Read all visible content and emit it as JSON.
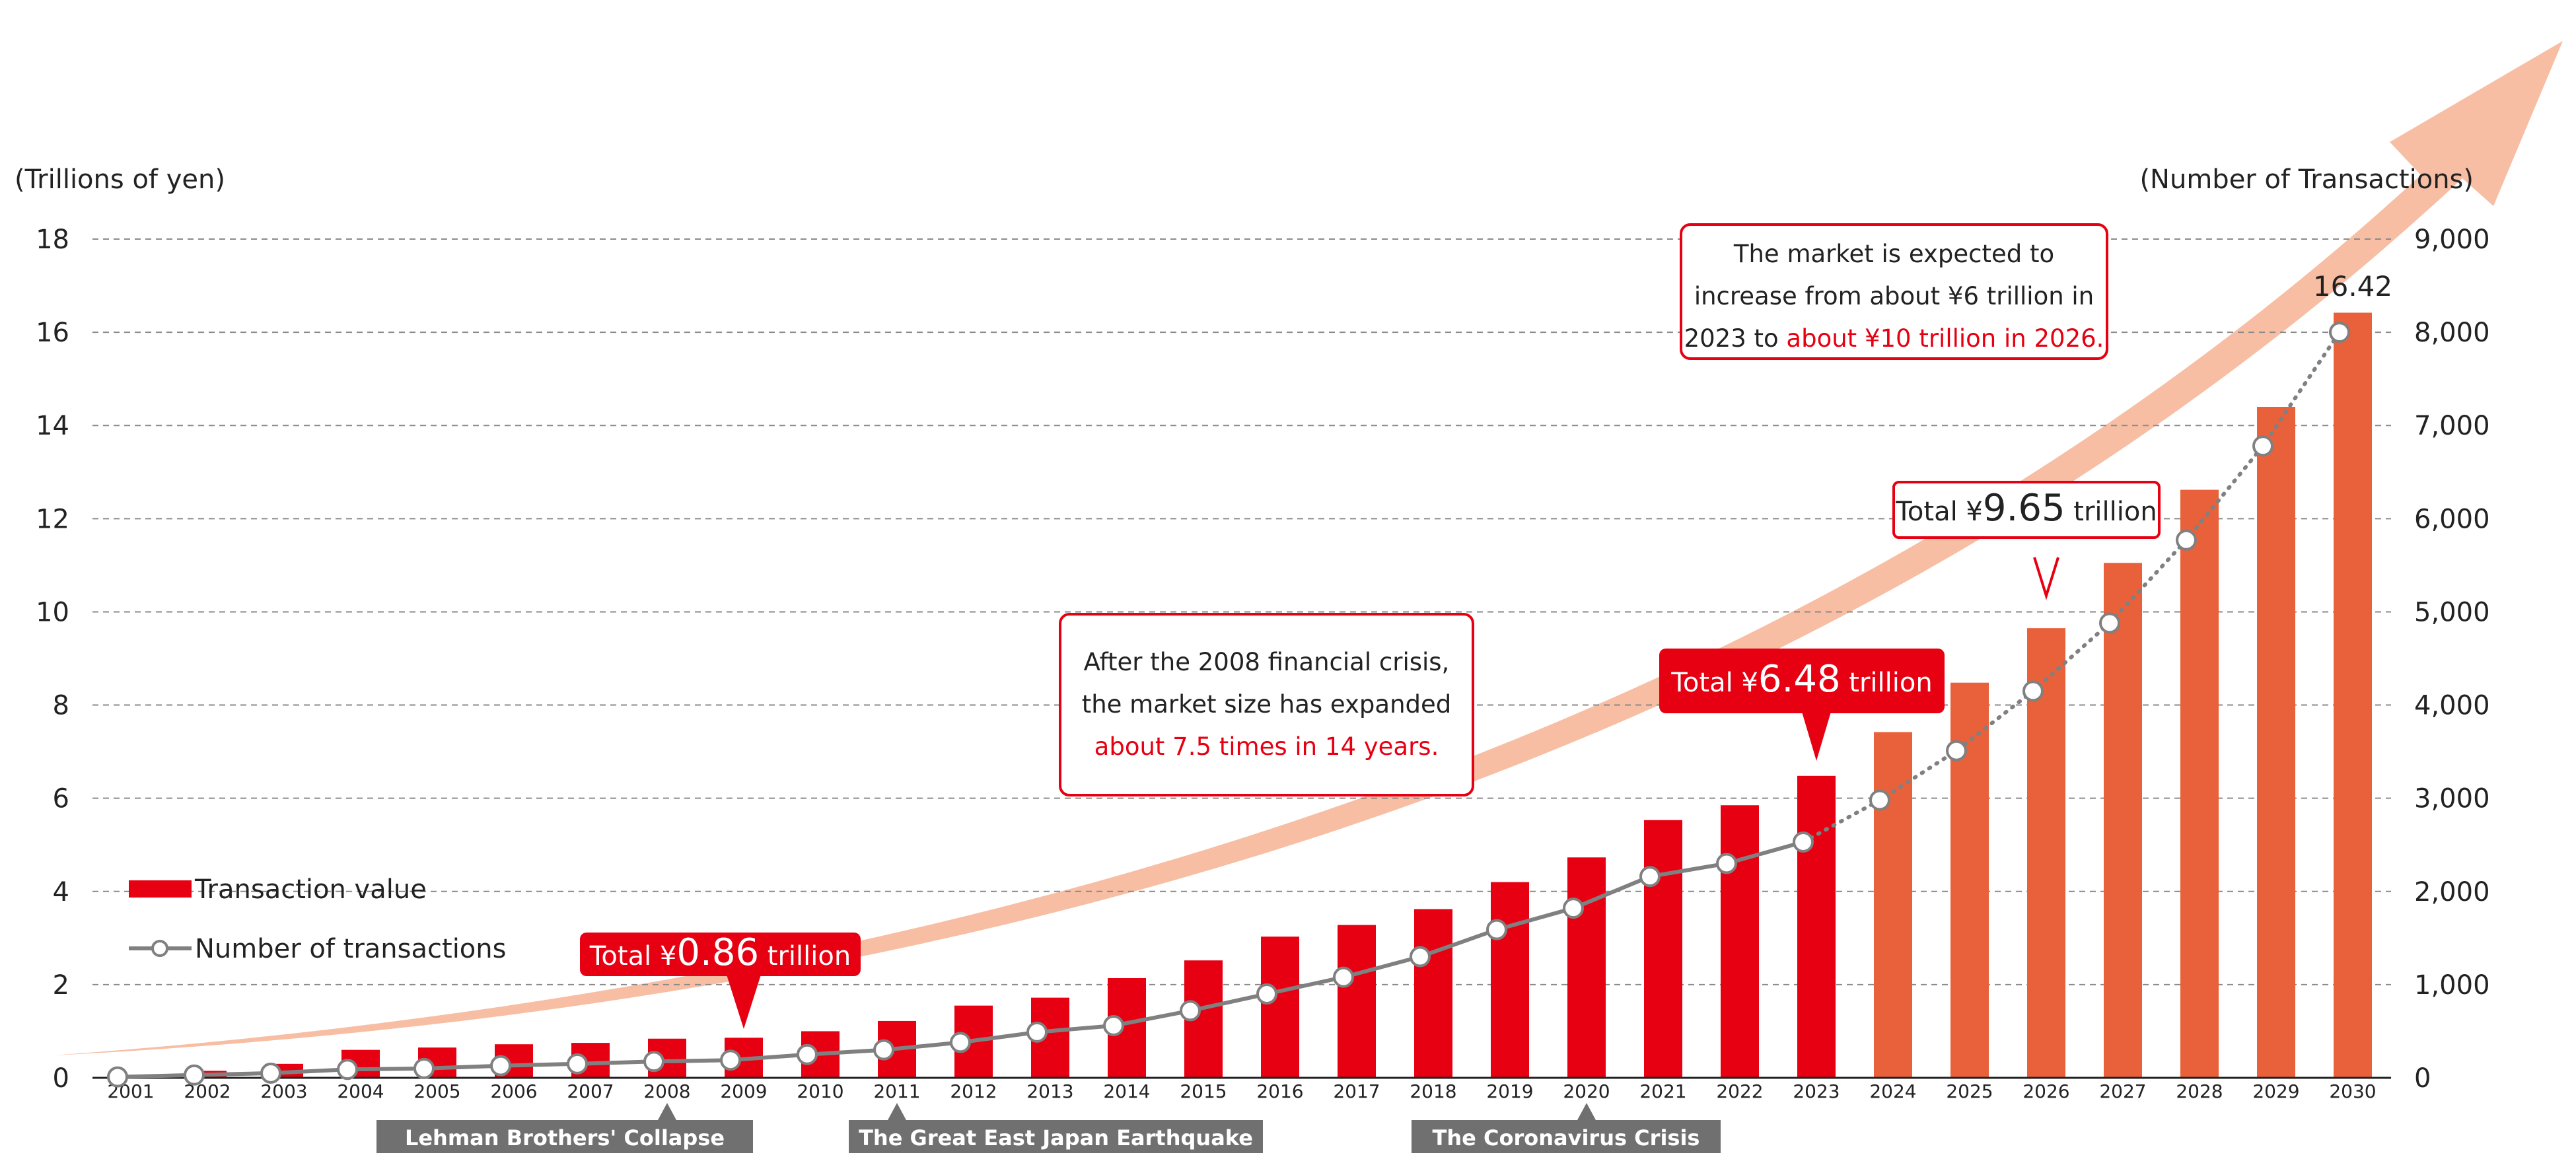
{
  "chart_data": {
    "type": "bar",
    "categories": [
      "2001",
      "2002",
      "2003",
      "2004",
      "2005",
      "2006",
      "2007",
      "2008",
      "2009",
      "2010",
      "2011",
      "2012",
      "2013",
      "2014",
      "2015",
      "2016",
      "2017",
      "2018",
      "2019",
      "2020",
      "2021",
      "2022",
      "2023",
      "2024",
      "2025",
      "2026",
      "2027",
      "2028",
      "2029",
      "2030"
    ],
    "left_axis": {
      "label": "(Trillions of yen)",
      "ylim": [
        0,
        18
      ],
      "ticks": [
        "0",
        "2",
        "4",
        "6",
        "8",
        "10",
        "12",
        "14",
        "16",
        "18"
      ]
    },
    "right_axis": {
      "label": "(Number of Transactions)",
      "ylim": [
        0,
        9000
      ],
      "ticks": [
        "0",
        "1,000",
        "2,000",
        "3,000",
        "4,000",
        "5,000",
        "6,000",
        "7,000",
        "8,000",
        "9,000"
      ]
    },
    "grid": true,
    "series": [
      {
        "name": "Transaction value",
        "type": "bar",
        "axis": "left",
        "values": [
          0.05,
          0.15,
          0.3,
          0.6,
          0.65,
          0.72,
          0.75,
          0.84,
          0.86,
          1.0,
          1.22,
          1.55,
          1.72,
          2.14,
          2.52,
          3.03,
          3.28,
          3.62,
          4.2,
          4.73,
          5.53,
          5.85,
          6.48,
          7.42,
          8.48,
          9.65,
          11.05,
          12.62,
          14.4,
          16.42
        ],
        "actual_color": "#e60012",
        "forecast_color": "#e8613a",
        "forecast_from": "2024"
      },
      {
        "name": "Number of transactions",
        "type": "line",
        "axis": "right",
        "values": [
          10,
          30,
          50,
          90,
          100,
          130,
          150,
          175,
          190,
          250,
          300,
          380,
          490,
          560,
          720,
          900,
          1080,
          1300,
          1590,
          1820,
          2160,
          2300,
          2530,
          2980,
          3510,
          4150,
          4880,
          5770,
          6780,
          8000
        ],
        "color": "#808080",
        "forecast_from": "2023"
      }
    ],
    "value_label": "16.42",
    "legend": {
      "placement": "left",
      "items": [
        "Transaction value",
        "Number of transactions"
      ]
    },
    "callouts": [
      {
        "year": "2009",
        "prefix": "Total ¥",
        "value": "0.86",
        "suffix": " trillion",
        "style": "red"
      },
      {
        "year": "2023",
        "prefix": "Total ¥",
        "value": "6.48",
        "suffix": " trillion",
        "style": "red"
      },
      {
        "year": "2026",
        "prefix": "Total ¥",
        "value": "9.65",
        "suffix": " trillion",
        "style": "outline"
      }
    ],
    "annotation_boxes": [
      {
        "lines": [
          [
            "After the 2008 financial crisis,",
            ""
          ],
          [
            "the market size has expanded",
            ""
          ],
          [
            "",
            "about 7.5 times in 14 years."
          ]
        ]
      },
      {
        "lines": [
          [
            "The market is expected to",
            ""
          ],
          [
            "increase from about ¥6 trillion in",
            ""
          ],
          [
            "2023 to ",
            "about ¥10 trillion in 2026."
          ]
        ]
      }
    ],
    "events": [
      {
        "year": "2008",
        "label": "Lehman Brothers' Collapse"
      },
      {
        "year": "2011",
        "label": "The Great East Japan Earthquake"
      },
      {
        "year": "2020",
        "label": "The Coronavirus Crisis"
      }
    ]
  }
}
